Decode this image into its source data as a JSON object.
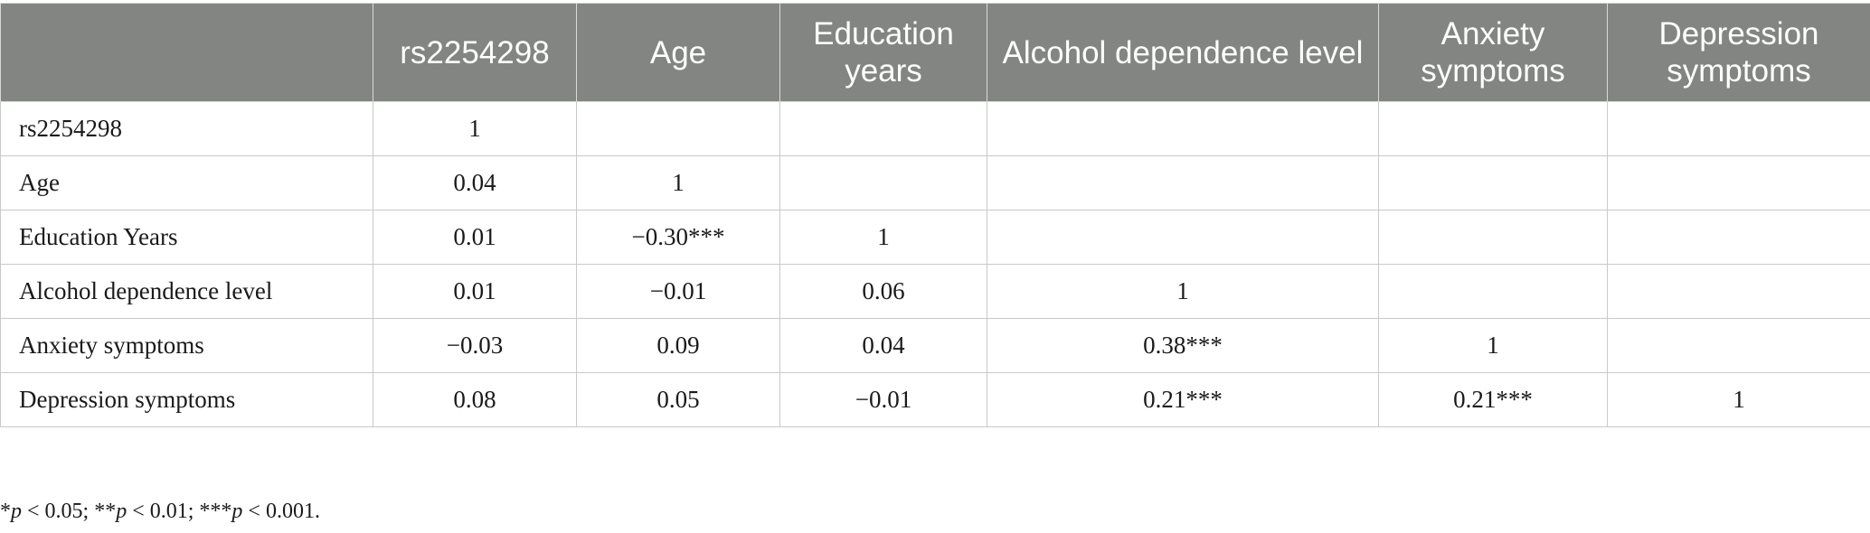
{
  "table": {
    "columns": [
      "",
      "rs2254298",
      "Age",
      "Education years",
      "Alcohol dependence level",
      "Anxiety symptoms",
      "Depression symptoms"
    ],
    "rows": [
      {
        "label": "rs2254298",
        "cells": [
          "1",
          "",
          "",
          "",
          "",
          ""
        ]
      },
      {
        "label": "Age",
        "cells": [
          "0.04",
          "1",
          "",
          "",
          "",
          ""
        ]
      },
      {
        "label": "Education Years",
        "cells": [
          "0.01",
          "−0.30***",
          "1",
          "",
          "",
          ""
        ]
      },
      {
        "label": "Alcohol dependence level",
        "cells": [
          "0.01",
          "−0.01",
          "0.06",
          "1",
          "",
          ""
        ]
      },
      {
        "label": "Anxiety symptoms",
        "cells": [
          "−0.03",
          "0.09",
          "0.04",
          "0.38***",
          "1",
          ""
        ]
      },
      {
        "label": "Depression symptoms",
        "cells": [
          "0.08",
          "0.05",
          "−0.01",
          "0.21***",
          "0.21***",
          "1"
        ]
      }
    ]
  },
  "footnote": {
    "sig1_stars": "*",
    "sig1_p": "p",
    "sig1_rest": " < 0.05; ",
    "sig2_stars": "**",
    "sig2_p": "p",
    "sig2_rest": " < 0.01; ",
    "sig3_stars": "***",
    "sig3_p": "p",
    "sig3_rest": " < 0.001."
  }
}
